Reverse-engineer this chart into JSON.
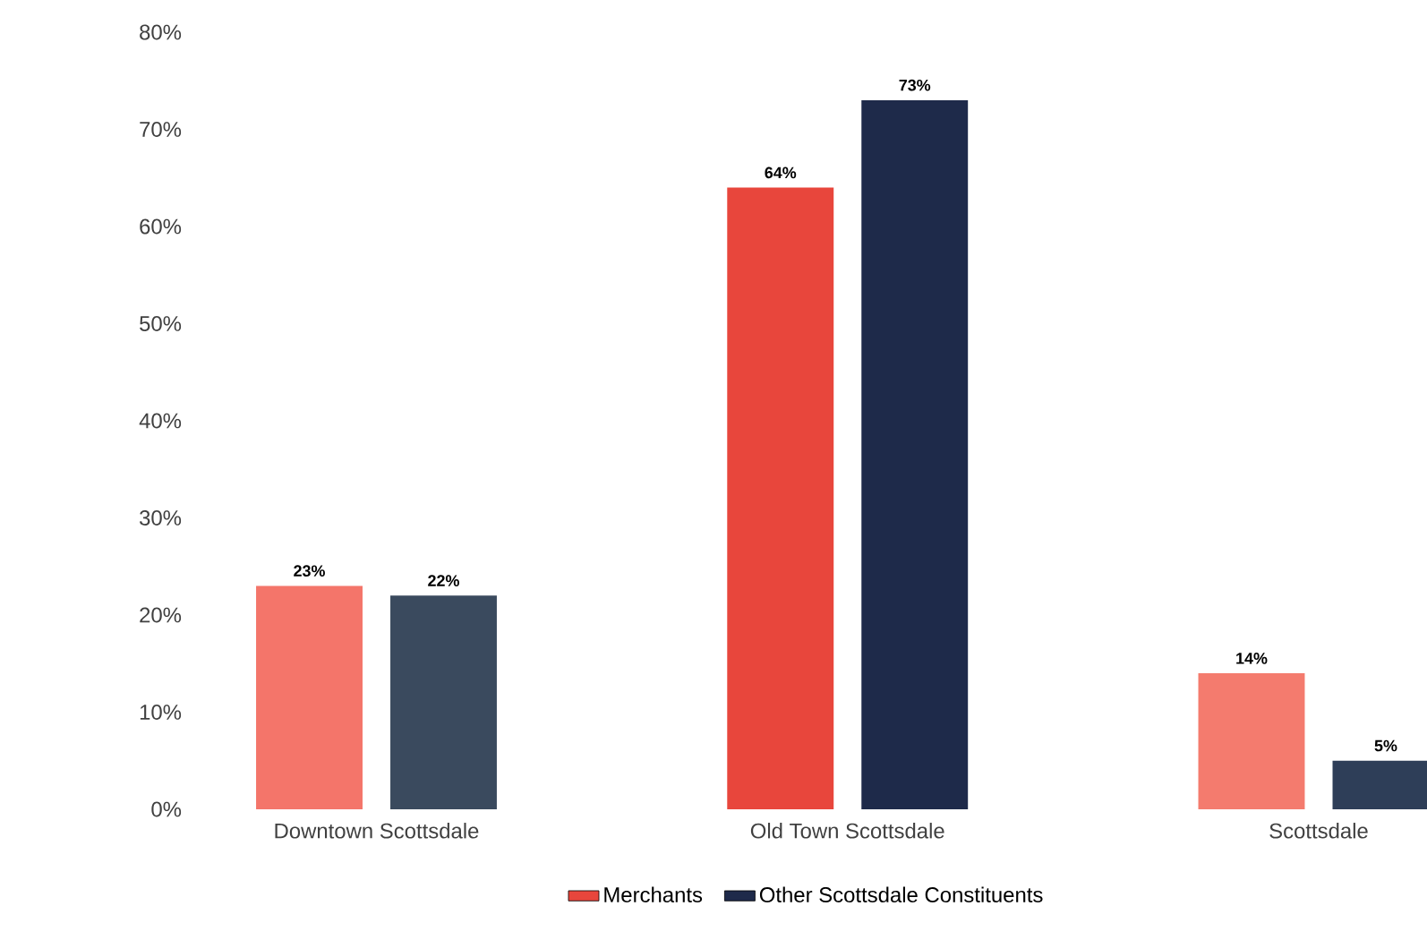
{
  "chart_data": {
    "type": "bar",
    "categories": [
      "Downtown Scottsdale",
      "Old Town Scottsdale",
      "Scottsdale"
    ],
    "series": [
      {
        "name": "Merchants",
        "color": "#e8463c",
        "colors": [
          "#f4756a",
          "#e8463c",
          "#f47b6e"
        ],
        "values": [
          23,
          64,
          14
        ],
        "value_labels": [
          "23%",
          "64%",
          "14%"
        ]
      },
      {
        "name": "Other Scottsdale Constituents",
        "color": "#1e2a4a",
        "colors": [
          "#3a4a5e",
          "#1e2a4a",
          "#2e3e58"
        ],
        "values": [
          22,
          73,
          5
        ],
        "value_labels": [
          "22%",
          "73%",
          "5%"
        ]
      }
    ],
    "ylim": [
      0,
      80
    ],
    "yticks": [
      {
        "value": 0,
        "label": "0%"
      },
      {
        "value": 10,
        "label": "10%"
      },
      {
        "value": 20,
        "label": "20%"
      },
      {
        "value": 30,
        "label": "30%"
      },
      {
        "value": 40,
        "label": "40%"
      },
      {
        "value": 50,
        "label": "50%"
      },
      {
        "value": 60,
        "label": "60%"
      },
      {
        "value": 70,
        "label": "70%"
      },
      {
        "value": 80,
        "label": "80%"
      }
    ],
    "grid": false,
    "legend": "bottom"
  }
}
